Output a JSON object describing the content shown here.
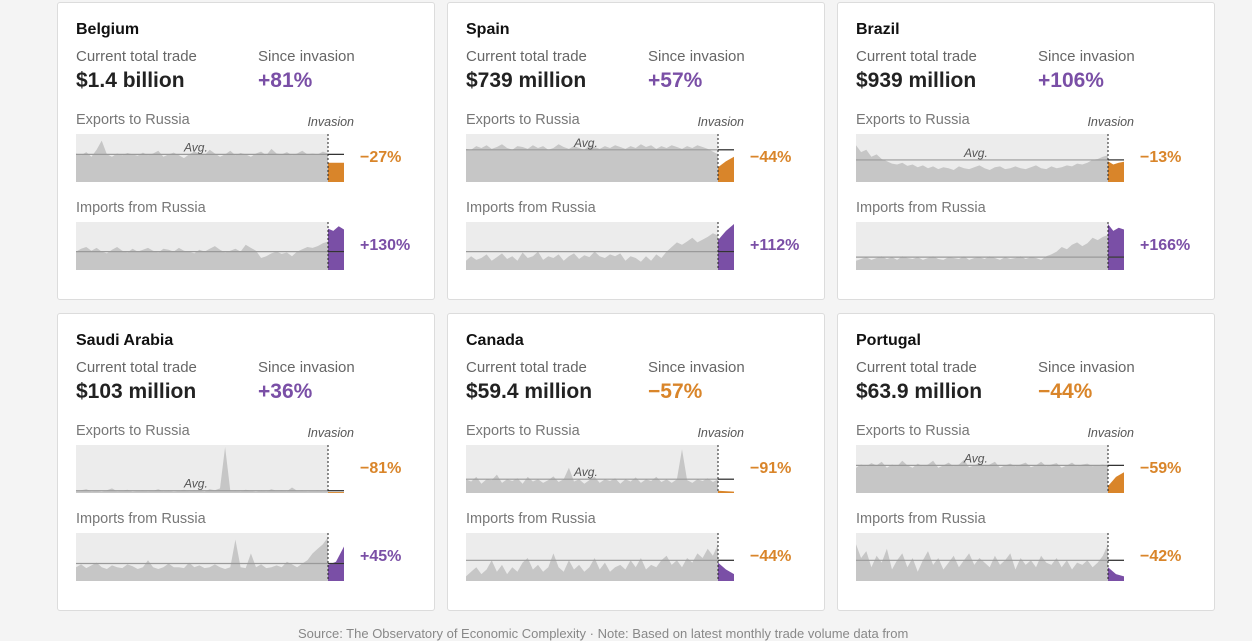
{
  "chart_data": [
    {
      "type": "area",
      "country": "Belgium",
      "total_label": "Current total trade",
      "total_value": "$1.4 billion",
      "since_label": "Since invasion",
      "since_value": "+81%",
      "since_sign": "pos",
      "exports": {
        "label": "Exports to Russia",
        "invasion_label": "Invasion",
        "avg_label": "Avg.",
        "change": "−27%",
        "sign": "neg",
        "avg": 0.6,
        "post": [
          0.42,
          0.42
        ],
        "values": [
          0.62,
          0.58,
          0.65,
          0.55,
          0.7,
          0.9,
          0.6,
          0.55,
          0.62,
          0.58,
          0.63,
          0.6,
          0.57,
          0.64,
          0.58,
          0.62,
          0.68,
          0.55,
          0.6,
          0.64,
          0.58,
          0.52,
          0.6,
          0.66,
          0.62,
          0.58,
          0.7,
          0.62,
          0.55,
          0.6,
          0.68,
          0.58,
          0.63,
          0.6,
          0.55,
          0.62,
          0.66,
          0.58,
          0.72,
          0.62,
          0.6,
          0.65,
          0.58,
          0.62,
          0.68,
          0.6,
          0.62,
          0.6,
          0.66,
          0.62
        ]
      },
      "imports": {
        "label": "Imports from Russia",
        "change": "+130%",
        "sign": "pos",
        "avg": 0.4,
        "post": [
          0.9,
          0.85,
          0.95,
          0.88
        ],
        "values": [
          0.4,
          0.46,
          0.5,
          0.42,
          0.48,
          0.4,
          0.36,
          0.44,
          0.5,
          0.42,
          0.38,
          0.46,
          0.4,
          0.44,
          0.48,
          0.42,
          0.38,
          0.46,
          0.44,
          0.4,
          0.48,
          0.42,
          0.4,
          0.36,
          0.44,
          0.4,
          0.46,
          0.52,
          0.44,
          0.38,
          0.42,
          0.46,
          0.4,
          0.55,
          0.48,
          0.42,
          0.26,
          0.3,
          0.36,
          0.4,
          0.35,
          0.38,
          0.3,
          0.4,
          0.45,
          0.5,
          0.48,
          0.52,
          0.58,
          0.62
        ]
      }
    },
    {
      "type": "area",
      "country": "Spain",
      "total_label": "Current total trade",
      "total_value": "$739 million",
      "since_label": "Since invasion",
      "since_value": "+57%",
      "since_sign": "pos",
      "exports": {
        "label": "Exports to Russia",
        "invasion_label": "Invasion",
        "avg_label": "Avg.",
        "change": "−44%",
        "sign": "neg",
        "avg": 0.7,
        "post": [
          0.32,
          0.45,
          0.55
        ],
        "values": [
          0.72,
          0.7,
          0.78,
          0.74,
          0.8,
          0.72,
          0.76,
          0.82,
          0.74,
          0.7,
          0.78,
          0.76,
          0.72,
          0.8,
          0.74,
          0.78,
          0.7,
          0.74,
          0.82,
          0.76,
          0.72,
          0.78,
          0.74,
          0.7,
          0.8,
          0.76,
          0.72,
          0.78,
          0.74,
          0.8,
          0.76,
          0.72,
          0.78,
          0.74,
          0.82,
          0.76,
          0.8,
          0.72,
          0.78,
          0.74,
          0.8,
          0.76,
          0.72,
          0.78,
          0.74,
          0.8,
          0.76,
          0.72,
          0.66,
          0.6
        ]
      },
      "imports": {
        "label": "Imports from Russia",
        "change": "+112%",
        "sign": "pos",
        "avg": 0.4,
        "post": [
          0.65,
          0.85,
          1.0
        ],
        "values": [
          0.2,
          0.3,
          0.22,
          0.26,
          0.34,
          0.2,
          0.28,
          0.36,
          0.24,
          0.3,
          0.2,
          0.38,
          0.26,
          0.3,
          0.4,
          0.22,
          0.3,
          0.26,
          0.34,
          0.2,
          0.3,
          0.36,
          0.24,
          0.32,
          0.28,
          0.4,
          0.3,
          0.26,
          0.34,
          0.3,
          0.36,
          0.2,
          0.3,
          0.26,
          0.18,
          0.3,
          0.2,
          0.34,
          0.26,
          0.4,
          0.5,
          0.6,
          0.55,
          0.62,
          0.7,
          0.6,
          0.66,
          0.72,
          0.8,
          0.75
        ]
      }
    },
    {
      "type": "area",
      "country": "Brazil",
      "total_label": "Current total trade",
      "total_value": "$939 million",
      "since_label": "Since invasion",
      "since_value": "+106%",
      "since_sign": "pos",
      "exports": {
        "label": "Exports to Russia",
        "invasion_label": "Invasion",
        "avg_label": "Avg.",
        "change": "−13%",
        "sign": "neg",
        "avg": 0.48,
        "post": [
          0.45,
          0.38,
          0.42,
          0.44
        ],
        "values": [
          0.8,
          0.65,
          0.7,
          0.55,
          0.6,
          0.5,
          0.45,
          0.4,
          0.38,
          0.42,
          0.35,
          0.38,
          0.32,
          0.36,
          0.3,
          0.34,
          0.28,
          0.32,
          0.3,
          0.26,
          0.34,
          0.3,
          0.28,
          0.32,
          0.36,
          0.3,
          0.26,
          0.32,
          0.34,
          0.28,
          0.3,
          0.34,
          0.3,
          0.28,
          0.32,
          0.36,
          0.3,
          0.28,
          0.34,
          0.3,
          0.32,
          0.36,
          0.34,
          0.4,
          0.38,
          0.42,
          0.48,
          0.5,
          0.55,
          0.58
        ]
      },
      "imports": {
        "label": "Imports from Russia",
        "change": "+166%",
        "sign": "pos",
        "avg": 0.28,
        "post": [
          1.0,
          0.85,
          0.92,
          0.88
        ],
        "values": [
          0.2,
          0.24,
          0.28,
          0.22,
          0.26,
          0.3,
          0.24,
          0.28,
          0.22,
          0.3,
          0.26,
          0.24,
          0.28,
          0.22,
          0.26,
          0.3,
          0.24,
          0.22,
          0.28,
          0.26,
          0.24,
          0.3,
          0.22,
          0.26,
          0.28,
          0.24,
          0.3,
          0.26,
          0.22,
          0.28,
          0.24,
          0.26,
          0.3,
          0.24,
          0.28,
          0.26,
          0.22,
          0.3,
          0.34,
          0.4,
          0.5,
          0.45,
          0.55,
          0.6,
          0.52,
          0.58,
          0.7,
          0.65,
          0.72,
          0.76
        ]
      }
    },
    {
      "type": "area",
      "country": "Saudi Arabia",
      "total_label": "Current total trade",
      "total_value": "$103 million",
      "since_label": "Since invasion",
      "since_value": "+36%",
      "since_sign": "pos",
      "exports": {
        "label": "Exports to Russia",
        "invasion_label": "Invasion",
        "avg_label": "Avg.",
        "change": "−81%",
        "sign": "neg",
        "avg": 0.05,
        "post": [
          0.02,
          0.02
        ],
        "values": [
          0.04,
          0.06,
          0.08,
          0.04,
          0.05,
          0.03,
          0.06,
          0.1,
          0.04,
          0.05,
          0.07,
          0.03,
          0.05,
          0.06,
          0.04,
          0.05,
          0.08,
          0.04,
          0.06,
          0.03,
          0.05,
          0.07,
          0.04,
          0.06,
          0.05,
          0.03,
          0.08,
          0.06,
          0.1,
          1.0,
          0.05,
          0.06,
          0.04,
          0.07,
          0.05,
          0.03,
          0.06,
          0.04,
          0.08,
          0.05,
          0.06,
          0.04,
          0.12,
          0.05,
          0.06,
          0.04,
          0.05,
          0.06,
          0.04,
          0.05
        ]
      },
      "imports": {
        "label": "Imports from Russia",
        "change": "+45%",
        "sign": "pos",
        "avg": 0.38,
        "post": [
          0.35,
          0.42,
          0.75
        ],
        "values": [
          0.3,
          0.36,
          0.28,
          0.34,
          0.4,
          0.3,
          0.26,
          0.34,
          0.3,
          0.28,
          0.36,
          0.32,
          0.26,
          0.3,
          0.45,
          0.3,
          0.26,
          0.3,
          0.38,
          0.3,
          0.3,
          0.28,
          0.4,
          0.3,
          0.34,
          0.28,
          0.3,
          0.36,
          0.3,
          0.26,
          0.3,
          0.9,
          0.3,
          0.28,
          0.6,
          0.3,
          0.36,
          0.28,
          0.3,
          0.34,
          0.3,
          0.42,
          0.36,
          0.3,
          0.38,
          0.45,
          0.6,
          0.7,
          0.8,
          0.95
        ]
      }
    },
    {
      "type": "area",
      "country": "Canada",
      "total_label": "Current total trade",
      "total_value": "$59.4 million",
      "since_label": "Since invasion",
      "since_value": "−57%",
      "since_sign": "neg",
      "exports": {
        "label": "Exports to Russia",
        "invasion_label": "Invasion",
        "avg_label": "Avg.",
        "change": "−91%",
        "sign": "neg",
        "avg": 0.3,
        "post": [
          0.05,
          0.03
        ],
        "values": [
          0.3,
          0.25,
          0.35,
          0.2,
          0.3,
          0.28,
          0.4,
          0.22,
          0.3,
          0.26,
          0.32,
          0.2,
          0.35,
          0.25,
          0.3,
          0.22,
          0.28,
          0.36,
          0.24,
          0.3,
          0.55,
          0.25,
          0.3,
          0.2,
          0.28,
          0.35,
          0.22,
          0.3,
          0.26,
          0.32,
          0.2,
          0.3,
          0.25,
          0.34,
          0.22,
          0.3,
          0.26,
          0.35,
          0.24,
          0.3,
          0.22,
          0.3,
          0.95,
          0.28,
          0.22,
          0.3,
          0.26,
          0.32,
          0.24,
          0.3
        ]
      },
      "imports": {
        "label": "Imports from Russia",
        "change": "−44%",
        "sign": "neg",
        "avg": 0.45,
        "post": [
          0.4,
          0.25,
          0.15
        ],
        "values": [
          0.1,
          0.2,
          0.3,
          0.15,
          0.25,
          0.45,
          0.2,
          0.35,
          0.15,
          0.3,
          0.2,
          0.4,
          0.5,
          0.25,
          0.35,
          0.2,
          0.3,
          0.6,
          0.3,
          0.2,
          0.45,
          0.25,
          0.35,
          0.2,
          0.3,
          0.5,
          0.25,
          0.4,
          0.2,
          0.3,
          0.35,
          0.25,
          0.45,
          0.3,
          0.5,
          0.25,
          0.35,
          0.3,
          0.45,
          0.55,
          0.35,
          0.45,
          0.3,
          0.5,
          0.4,
          0.6,
          0.5,
          0.7,
          0.55,
          0.8
        ]
      }
    },
    {
      "type": "area",
      "country": "Portugal",
      "total_label": "Current total trade",
      "total_value": "$63.9 million",
      "since_label": "Since invasion",
      "since_value": "−44%",
      "since_sign": "neg",
      "exports": {
        "label": "Exports to Russia",
        "invasion_label": "Invasion",
        "avg_label": "Avg.",
        "change": "−59%",
        "sign": "neg",
        "avg": 0.6,
        "post": [
          0.15,
          0.35,
          0.45
        ],
        "values": [
          0.55,
          0.62,
          0.58,
          0.65,
          0.6,
          0.68,
          0.55,
          0.62,
          0.58,
          0.7,
          0.6,
          0.55,
          0.64,
          0.58,
          0.62,
          0.7,
          0.55,
          0.6,
          0.66,
          0.58,
          0.62,
          0.72,
          0.56,
          0.6,
          0.65,
          0.58,
          0.62,
          0.68,
          0.55,
          0.6,
          0.64,
          0.58,
          0.62,
          0.66,
          0.56,
          0.6,
          0.68,
          0.58,
          0.62,
          0.65,
          0.55,
          0.6,
          0.66,
          0.58,
          0.62,
          0.64,
          0.58,
          0.6,
          0.62,
          0.58
        ]
      },
      "imports": {
        "label": "Imports from Russia",
        "change": "−42%",
        "sign": "neg",
        "avg": 0.45,
        "post": [
          0.3,
          0.15,
          0.1
        ],
        "values": [
          0.8,
          0.5,
          0.65,
          0.3,
          0.55,
          0.4,
          0.7,
          0.25,
          0.45,
          0.6,
          0.3,
          0.5,
          0.2,
          0.45,
          0.65,
          0.35,
          0.5,
          0.25,
          0.4,
          0.55,
          0.3,
          0.45,
          0.6,
          0.35,
          0.5,
          0.4,
          0.3,
          0.55,
          0.35,
          0.45,
          0.6,
          0.25,
          0.5,
          0.35,
          0.45,
          0.3,
          0.55,
          0.4,
          0.35,
          0.5,
          0.3,
          0.45,
          0.25,
          0.4,
          0.35,
          0.45,
          0.3,
          0.4,
          0.55,
          0.8
        ]
      }
    }
  ],
  "footer": "Source: The Observatory of Economic Complexity · Note: Based on latest monthly trade volume data from",
  "colors": {
    "area": "#c6c6c6",
    "panel": "#ececec",
    "avg_line": "#9a9a9a",
    "export_post": "#d9852a",
    "import_post": "#7a4fa6"
  }
}
